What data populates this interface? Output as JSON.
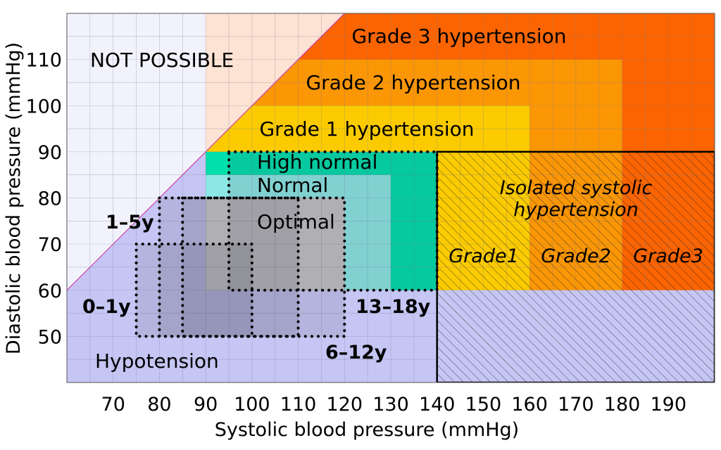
{
  "chart_data": {
    "type": "area",
    "title": "",
    "xlabel": "Systolic blood pressure (mmHg)",
    "ylabel": "Diastolic blood pressure (mmHg)",
    "xlim": [
      60,
      200
    ],
    "ylim": [
      40,
      120
    ],
    "x_ticks": [
      70,
      80,
      90,
      100,
      110,
      120,
      130,
      140,
      150,
      160,
      170,
      180,
      190
    ],
    "y_ticks": [
      50,
      60,
      70,
      80,
      90,
      100,
      110
    ],
    "grid": true,
    "colors": {
      "not_possible": "#f2f2fc",
      "not_possible_warm": "#fde3d3",
      "hypotension": "#c6c6f4",
      "optimal": "#d6d6d6",
      "normal": "#8de8e5",
      "high_normal": "#00dfac",
      "grade1": "#fbcb00",
      "grade2": "#fb9605",
      "grade3": "#fb6400",
      "diagonal": "#cc44aa"
    },
    "regions": [
      {
        "name": "Grade 3 hypertension",
        "x": [
          90,
          200
        ],
        "y": [
          40,
          120
        ]
      },
      {
        "name": "Grade 2 hypertension",
        "x": [
          90,
          180
        ],
        "y": [
          40,
          110
        ]
      },
      {
        "name": "Grade 1 hypertension",
        "x": [
          90,
          160
        ],
        "y": [
          40,
          100
        ]
      },
      {
        "name": "High normal",
        "x": [
          90,
          140
        ],
        "y": [
          40,
          90
        ]
      },
      {
        "name": "Normal",
        "x": [
          90,
          130
        ],
        "y": [
          40,
          85
        ]
      },
      {
        "name": "Optimal",
        "x": [
          90,
          120
        ],
        "y": [
          60,
          80
        ]
      },
      {
        "name": "Hypotension",
        "x": [
          60,
          90
        ],
        "y": [
          40,
          60
        ]
      }
    ],
    "isolated_systolic": {
      "title_lines": [
        "Isolated systolic",
        "hypertension"
      ],
      "x": [
        140,
        200
      ],
      "y": [
        40,
        90
      ],
      "grades": [
        {
          "name": "Grade1",
          "x": [
            140,
            160
          ]
        },
        {
          "name": "Grade2",
          "x": [
            160,
            180
          ]
        },
        {
          "name": "Grade3",
          "x": [
            180,
            200
          ]
        }
      ]
    },
    "age_groups": [
      {
        "name": "0–1y",
        "systolic": [
          75,
          100
        ],
        "diastolic": [
          50,
          70
        ]
      },
      {
        "name": "1–5y",
        "systolic": [
          80,
          110
        ],
        "diastolic": [
          50,
          80
        ]
      },
      {
        "name": "6–12y",
        "systolic": [
          85,
          120
        ],
        "diastolic": [
          50,
          80
        ]
      },
      {
        "name": "13–18y",
        "systolic": [
          95,
          140
        ],
        "diastolic": [
          60,
          90
        ]
      }
    ],
    "annotations": [
      "NOT POSSIBLE"
    ]
  }
}
